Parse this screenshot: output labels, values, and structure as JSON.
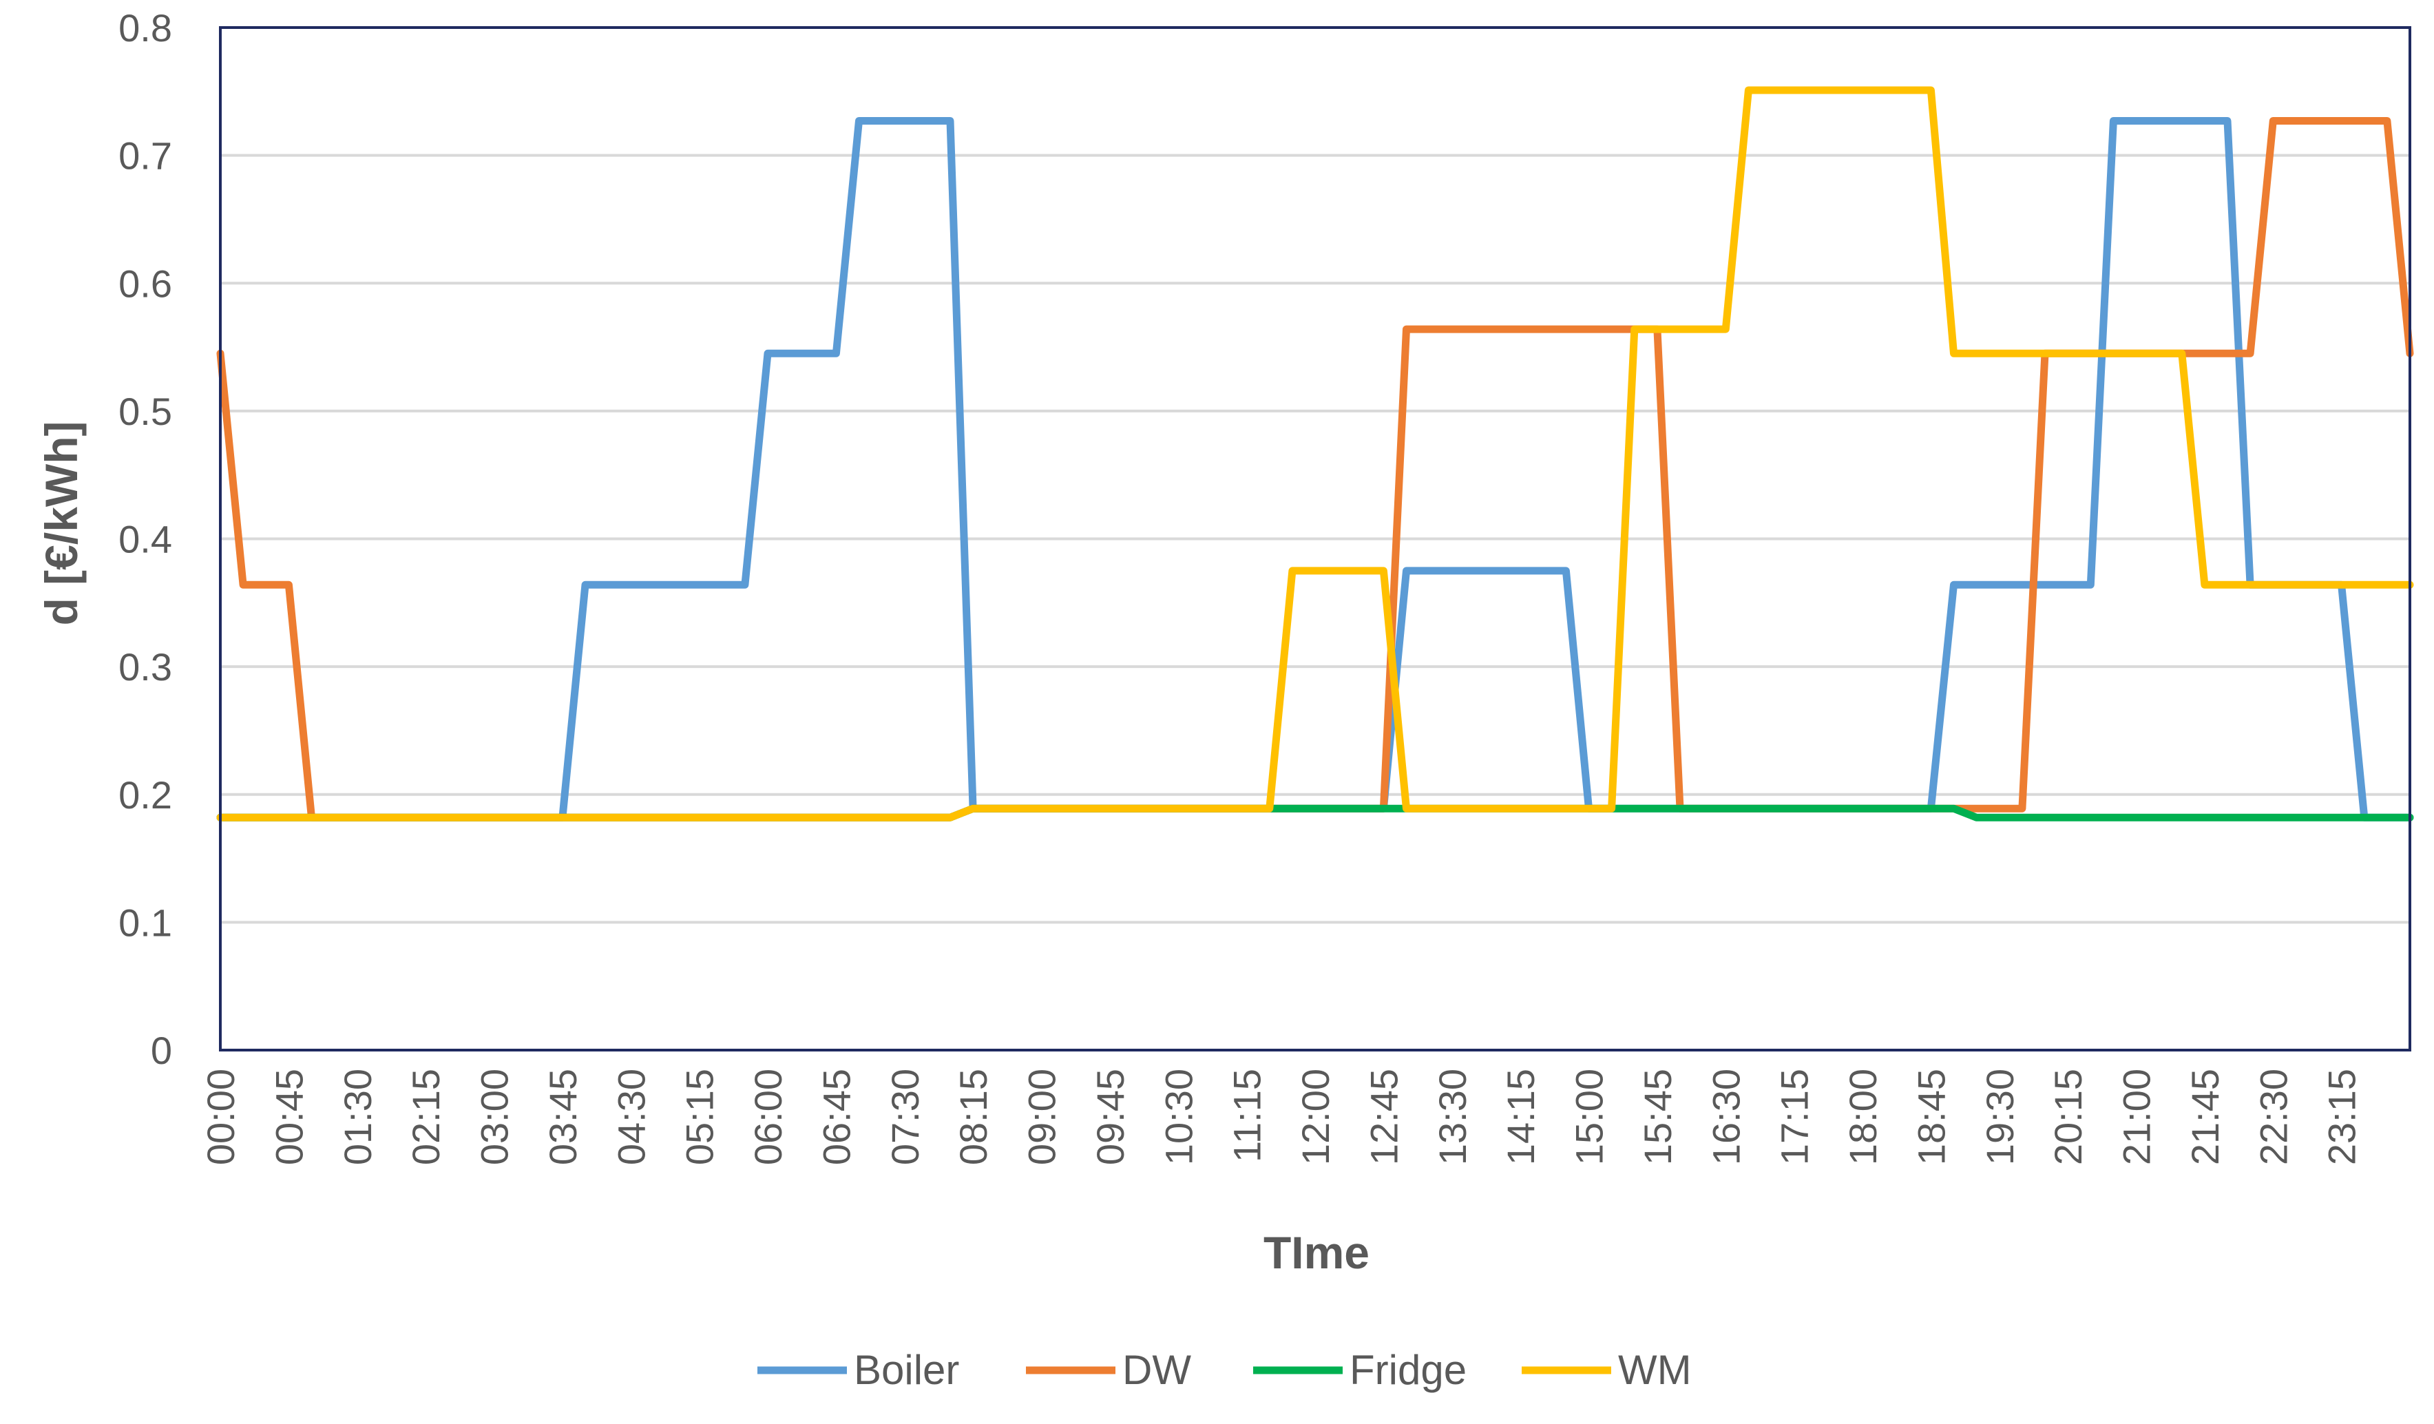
{
  "chart_data": {
    "type": "line",
    "title": "",
    "xlabel": "TIme",
    "ylabel": "d  [€/kWh]",
    "ylim": [
      0,
      0.8
    ],
    "yticks": [
      "0",
      "0.1",
      "0.2",
      "0.3",
      "0.4",
      "0.5",
      "0.6",
      "0.7",
      "0.8"
    ],
    "grid": true,
    "legend_position": "bottom",
    "x_tick_labels": [
      "00:00",
      "00:45",
      "01:30",
      "02:15",
      "03:00",
      "03:45",
      "04:30",
      "05:15",
      "06:00",
      "06:45",
      "07:30",
      "08:15",
      "09:00",
      "09:45",
      "10:30",
      "11:15",
      "12:00",
      "12:45",
      "13:30",
      "14:15",
      "15:00",
      "15:45",
      "16:30",
      "17:15",
      "18:00",
      "18:45",
      "19:30",
      "20:15",
      "21:00",
      "21:45",
      "22:30",
      "23:15"
    ],
    "series": [
      {
        "name": "Boiler",
        "color": "#5B9BD5",
        "points": [
          [
            0,
            0.182
          ],
          [
            3.75,
            0.182
          ],
          [
            4,
            0.364
          ],
          [
            5.75,
            0.364
          ],
          [
            6,
            0.545
          ],
          [
            6.75,
            0.545
          ],
          [
            7,
            0.727
          ],
          [
            8,
            0.727
          ],
          [
            8.25,
            0.189
          ],
          [
            11.25,
            0.189
          ],
          [
            12.75,
            0.189
          ],
          [
            13,
            0.375
          ],
          [
            14.75,
            0.375
          ],
          [
            15,
            0.189
          ],
          [
            18.75,
            0.189
          ],
          [
            19,
            0.364
          ],
          [
            20.5,
            0.364
          ],
          [
            20.75,
            0.727
          ],
          [
            22,
            0.727
          ],
          [
            22.25,
            0.364
          ],
          [
            23.25,
            0.364
          ],
          [
            23.5,
            0.182
          ],
          [
            24,
            0.182
          ]
        ]
      },
      {
        "name": "DW",
        "color": "#ED7D31",
        "points": [
          [
            0,
            0.545
          ],
          [
            0.25,
            0.364
          ],
          [
            0.75,
            0.364
          ],
          [
            1,
            0.182
          ],
          [
            8,
            0.182
          ],
          [
            8.25,
            0.189
          ],
          [
            12.75,
            0.189
          ],
          [
            13,
            0.564
          ],
          [
            15.75,
            0.564
          ],
          [
            16,
            0.189
          ],
          [
            19.75,
            0.189
          ],
          [
            20,
            0.545
          ],
          [
            22.25,
            0.545
          ],
          [
            22.5,
            0.727
          ],
          [
            23.75,
            0.727
          ],
          [
            24,
            0.545
          ]
        ]
      },
      {
        "name": "Fridge",
        "color": "#00B050",
        "points": [
          [
            0,
            0.182
          ],
          [
            8,
            0.182
          ],
          [
            8.25,
            0.189
          ],
          [
            19,
            0.189
          ],
          [
            19.25,
            0.182
          ],
          [
            24,
            0.182
          ]
        ]
      },
      {
        "name": "WM",
        "color": "#FFC000",
        "points": [
          [
            0,
            0.182
          ],
          [
            8,
            0.182
          ],
          [
            8.25,
            0.189
          ],
          [
            11.5,
            0.189
          ],
          [
            11.75,
            0.375
          ],
          [
            12.75,
            0.375
          ],
          [
            13,
            0.189
          ],
          [
            15.25,
            0.189
          ],
          [
            15.5,
            0.564
          ],
          [
            16.5,
            0.564
          ],
          [
            16.75,
            0.751
          ],
          [
            18.75,
            0.751
          ],
          [
            19,
            0.545
          ],
          [
            21.5,
            0.545
          ],
          [
            21.75,
            0.364
          ],
          [
            24,
            0.364
          ]
        ]
      }
    ]
  }
}
